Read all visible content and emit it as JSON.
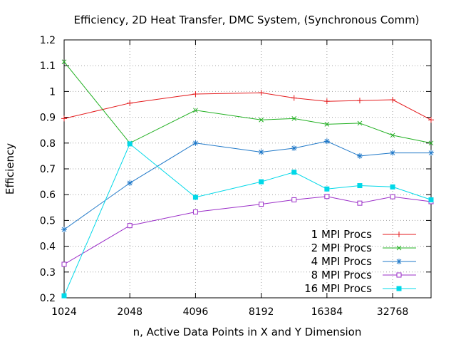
{
  "chart_data": {
    "type": "line",
    "title": "Efficiency, 2D Heat Transfer, DMC System, (Synchronous Comm)",
    "xlabel": "n, Active Data Points in X and Y Dimension",
    "ylabel": "Efficiency",
    "x_scale": "log2",
    "xlim": [
      1024,
      49152
    ],
    "ylim": [
      0.2,
      1.2
    ],
    "x_ticks": [
      1024,
      2048,
      4096,
      8192,
      16384,
      32768
    ],
    "y_ticks": [
      0.2,
      0.3,
      0.4,
      0.5,
      0.6,
      0.7,
      0.8,
      0.9,
      1,
      1.1,
      1.2
    ],
    "grid": true,
    "legend_position": "bottom-right",
    "x": [
      1024,
      2048,
      4096,
      8192,
      11585,
      16384,
      23170,
      32768,
      49152
    ],
    "series": [
      {
        "name": "1 MPI Procs",
        "color": "#e41a1c",
        "marker": "plus",
        "values": [
          0.895,
          0.955,
          0.99,
          0.995,
          0.975,
          0.962,
          0.965,
          0.968,
          0.89
        ]
      },
      {
        "name": "2 MPI Procs",
        "color": "#22b022",
        "marker": "x",
        "values": [
          1.115,
          0.8,
          0.927,
          0.89,
          0.895,
          0.873,
          0.877,
          0.83,
          0.8
        ]
      },
      {
        "name": "4 MPI Procs",
        "color": "#1f78c8",
        "marker": "star",
        "values": [
          0.465,
          0.645,
          0.8,
          0.765,
          0.78,
          0.807,
          0.75,
          0.762,
          0.762
        ]
      },
      {
        "name": "8 MPI Procs",
        "color": "#9b2fc8",
        "marker": "open-square",
        "values": [
          0.33,
          0.48,
          0.533,
          0.563,
          0.58,
          0.593,
          0.567,
          0.592,
          0.573
        ]
      },
      {
        "name": "16 MPI Procs",
        "color": "#00d8e8",
        "marker": "filled-square",
        "values": [
          0.208,
          0.797,
          0.59,
          0.65,
          0.687,
          0.622,
          0.635,
          0.63,
          0.58
        ]
      }
    ]
  }
}
